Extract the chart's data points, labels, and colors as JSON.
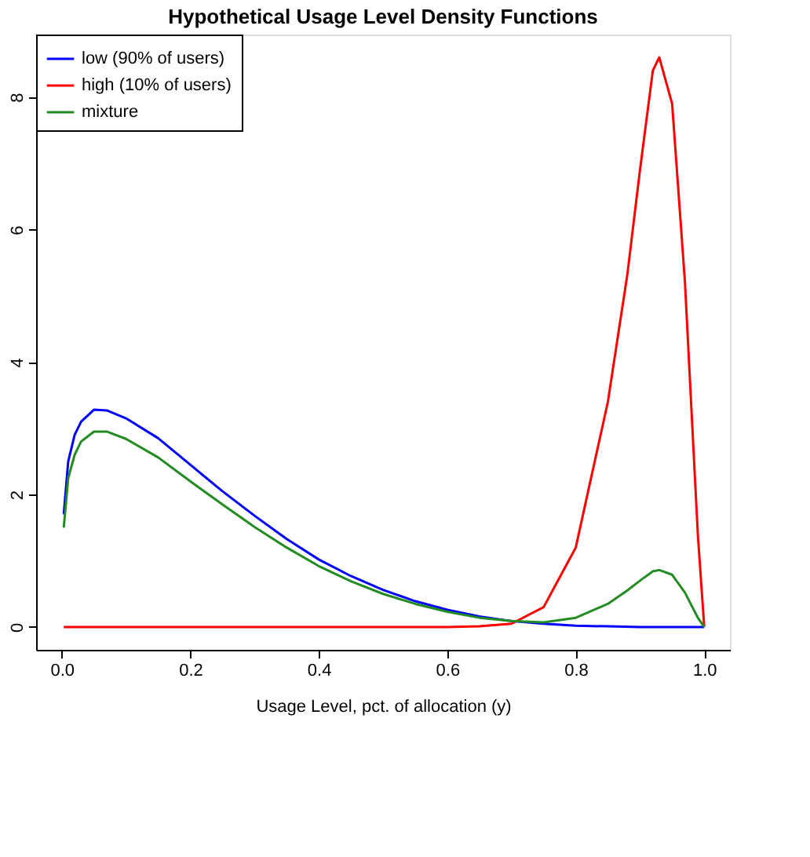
{
  "chart_data": {
    "type": "line",
    "title": "Hypothetical Usage Level Density Functions",
    "xlabel": "Usage Level, pct. of allocation (y)",
    "xlim": [
      -0.04,
      1.04
    ],
    "ylim": [
      -0.344,
      8.944
    ],
    "xticks": [
      {
        "value": 0,
        "label": "0.0"
      },
      0.2,
      0.4,
      0.6,
      0.8,
      {
        "value": 1,
        "label": "1.0"
      }
    ],
    "yticks": [
      0,
      2,
      4,
      6,
      8
    ],
    "grid": false,
    "legend": "top left",
    "marker": "none",
    "line_style": "solid",
    "series": [
      {
        "name": "low (90% of users)",
        "color": "#0000ff",
        "x": [
          0.003,
          0.01,
          0.02,
          0.03,
          0.05,
          0.07,
          0.1,
          0.15,
          0.2,
          0.25,
          0.3,
          0.35,
          0.4,
          0.45,
          0.5,
          0.55,
          0.6,
          0.65,
          0.7,
          0.75,
          0.8,
          0.85,
          0.9,
          1.0
        ],
        "values": [
          1.7,
          2.5,
          2.9,
          3.1,
          3.28,
          3.27,
          3.15,
          2.85,
          2.45,
          2.05,
          1.68,
          1.33,
          1.02,
          0.77,
          0.56,
          0.39,
          0.26,
          0.16,
          0.09,
          0.05,
          0.02,
          0.01,
          0.0,
          0.0
        ]
      },
      {
        "name": "high (10% of users)",
        "color": "#ff0000",
        "x": [
          0.003,
          0.6,
          0.65,
          0.7,
          0.75,
          0.8,
          0.85,
          0.88,
          0.9,
          0.92,
          0.93,
          0.95,
          0.97,
          0.98,
          0.99,
          1.0
        ],
        "values": [
          0.0,
          0.0,
          0.01,
          0.05,
          0.3,
          1.2,
          3.4,
          5.3,
          6.9,
          8.4,
          8.6,
          7.9,
          5.2,
          3.3,
          1.4,
          0.0
        ]
      },
      {
        "name": "mixture",
        "color": "#228b22",
        "x": [
          0.003,
          0.01,
          0.02,
          0.03,
          0.05,
          0.07,
          0.1,
          0.15,
          0.2,
          0.25,
          0.3,
          0.35,
          0.4,
          0.45,
          0.5,
          0.55,
          0.6,
          0.65,
          0.7,
          0.75,
          0.8,
          0.85,
          0.88,
          0.9,
          0.92,
          0.93,
          0.95,
          0.97,
          0.98,
          0.99,
          1.0
        ],
        "values": [
          1.5,
          2.25,
          2.6,
          2.8,
          2.95,
          2.95,
          2.84,
          2.56,
          2.2,
          1.85,
          1.51,
          1.2,
          0.92,
          0.69,
          0.5,
          0.35,
          0.23,
          0.14,
          0.09,
          0.07,
          0.14,
          0.35,
          0.55,
          0.7,
          0.84,
          0.86,
          0.79,
          0.52,
          0.33,
          0.14,
          0.0
        ]
      }
    ]
  }
}
